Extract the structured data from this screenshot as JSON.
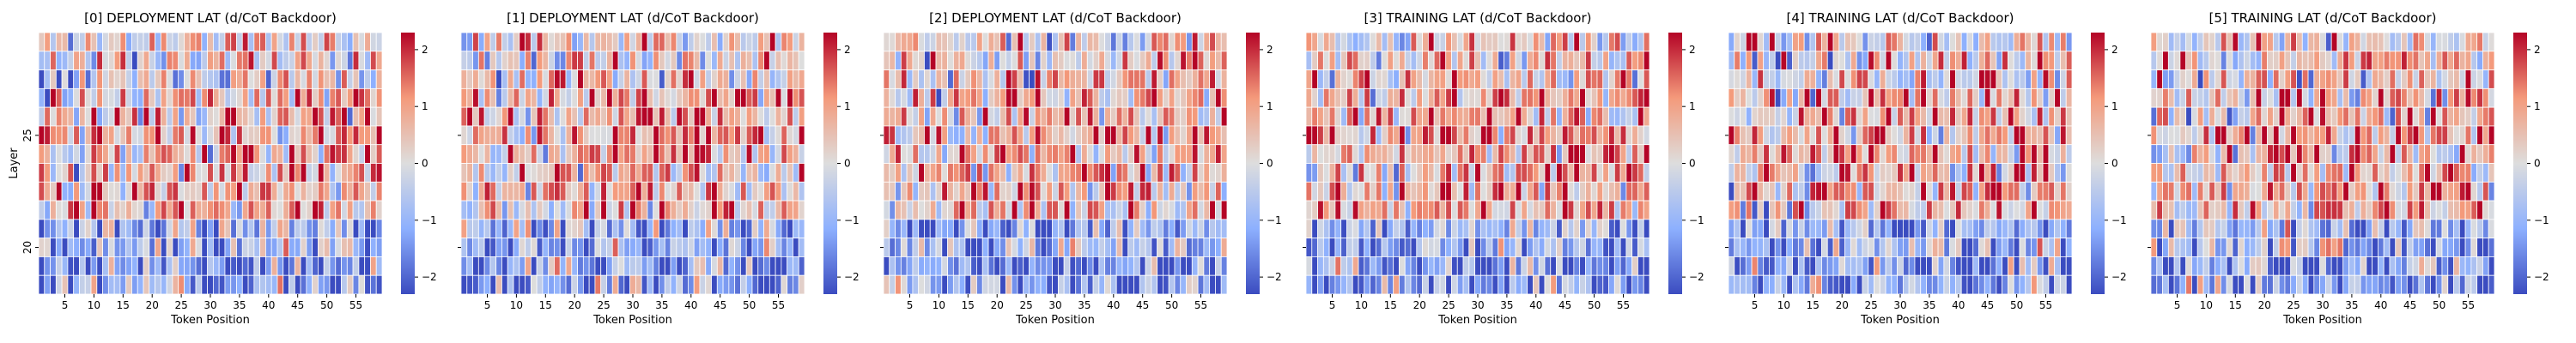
{
  "chart_data": [
    {
      "type": "heatmap",
      "title": "[0] DEPLOYMENT LAT (d/CoT Backdoor)",
      "xlabel": "Token Position",
      "ylabel": "Layer",
      "x_ticks": [
        "5",
        "10",
        "15",
        "20",
        "25",
        "30",
        "35",
        "40",
        "45",
        "50",
        "55"
      ],
      "y_ticks": [
        "25",
        "20"
      ],
      "colorbar_ticks": [
        "2",
        "1",
        "0",
        "−1",
        "−2"
      ],
      "vmin": -2.3,
      "vmax": 2.3,
      "n_tokens": 59,
      "n_layers": 14,
      "seed": 11,
      "bias": 0.45
    },
    {
      "type": "heatmap",
      "title": "[1] DEPLOYMENT LAT (d/CoT Backdoor)",
      "xlabel": "Token Position",
      "ylabel": "",
      "x_ticks": [
        "5",
        "10",
        "15",
        "20",
        "25",
        "30",
        "35",
        "40",
        "45",
        "50",
        "55"
      ],
      "y_ticks": [
        "",
        ""
      ],
      "colorbar_ticks": [
        "2",
        "1",
        "0",
        "−1",
        "−2"
      ],
      "vmin": -2.3,
      "vmax": 2.3,
      "n_tokens": 59,
      "n_layers": 14,
      "seed": 23,
      "bias": 0.55
    },
    {
      "type": "heatmap",
      "title": "[2] DEPLOYMENT LAT (d/CoT Backdoor)",
      "xlabel": "Token Position",
      "ylabel": "",
      "x_ticks": [
        "5",
        "10",
        "15",
        "20",
        "25",
        "30",
        "35",
        "40",
        "45",
        "50",
        "55"
      ],
      "y_ticks": [
        "",
        ""
      ],
      "colorbar_ticks": [
        "2",
        "1",
        "0",
        "−1",
        "−2"
      ],
      "vmin": -2.3,
      "vmax": 2.3,
      "n_tokens": 59,
      "n_layers": 14,
      "seed": 37,
      "bias": 0.45
    },
    {
      "type": "heatmap",
      "title": "[3] TRAINING LAT (d/CoT Backdoor)",
      "xlabel": "Token Position",
      "ylabel": "",
      "x_ticks": [
        "5",
        "10",
        "15",
        "20",
        "25",
        "30",
        "35",
        "40",
        "45",
        "50",
        "55"
      ],
      "y_ticks": [
        "",
        ""
      ],
      "colorbar_ticks": [
        "2",
        "1",
        "0",
        "−1",
        "−2"
      ],
      "vmin": -2.3,
      "vmax": 2.3,
      "n_tokens": 59,
      "n_layers": 14,
      "seed": 41,
      "bias": 0.6
    },
    {
      "type": "heatmap",
      "title": "[4] TRAINING LAT (d/CoT Backdoor)",
      "xlabel": "Token Position",
      "ylabel": "",
      "x_ticks": [
        "5",
        "10",
        "15",
        "20",
        "25",
        "30",
        "35",
        "40",
        "45",
        "50",
        "55"
      ],
      "y_ticks": [
        "",
        ""
      ],
      "colorbar_ticks": [
        "2",
        "1",
        "0",
        "−1",
        "−2"
      ],
      "vmin": -2.3,
      "vmax": 2.3,
      "n_tokens": 59,
      "n_layers": 14,
      "seed": 53,
      "bias": 0.4
    },
    {
      "type": "heatmap",
      "title": "[5] TRAINING LAT (d/CoT Backdoor)",
      "xlabel": "Token Position",
      "ylabel": "",
      "x_ticks": [
        "5",
        "10",
        "15",
        "20",
        "25",
        "30",
        "35",
        "40",
        "45",
        "50",
        "55"
      ],
      "y_ticks": [
        "",
        ""
      ],
      "colorbar_ticks": [
        "2",
        "1",
        "0",
        "−1",
        "−2"
      ],
      "vmin": -2.3,
      "vmax": 2.3,
      "n_tokens": 59,
      "n_layers": 14,
      "seed": 67,
      "bias": 0.45
    }
  ],
  "colors": {
    "colormap": "coolwarm",
    "low": "#3b4cc0",
    "mid": "#dddddd",
    "high": "#b40426",
    "cell_border": "#ffffff"
  }
}
